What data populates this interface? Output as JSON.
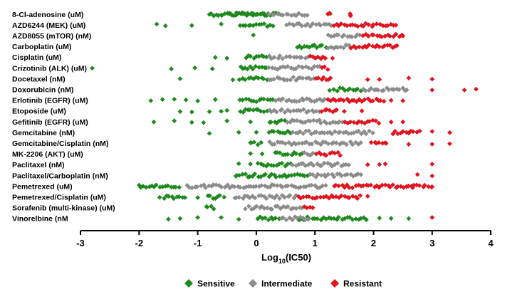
{
  "chart_data": {
    "type": "scatter",
    "title": "",
    "xlabel": "Log10(IC50)",
    "xlabel_base": "Log",
    "xlabel_sub": "10",
    "xlabel_rest": "(IC50)",
    "ylabel": "",
    "xlim": [
      -3,
      4
    ],
    "xticks": [
      -3,
      -2,
      -1,
      0,
      1,
      2,
      3,
      4
    ],
    "colors": {
      "sensitive": "#1e8a1e",
      "intermediate": "#8c8c8c",
      "resistant": "#e0141e"
    },
    "legend": [
      {
        "key": "sensitive",
        "label": "Sensitive"
      },
      {
        "key": "intermediate",
        "label": "Intermediate"
      },
      {
        "key": "resistant",
        "label": "Resistant"
      }
    ],
    "drugs": [
      {
        "label": "8-Cl-adenosine  (uM)",
        "sensitive": [
          [
            -0.8,
            0.4
          ],
          [
            -0.5,
            0.2
          ]
        ],
        "intermediate": [
          [
            0.2,
            0.9
          ]
        ],
        "resistant": [
          [
            1.2,
            1.3
          ],
          [
            1.6,
            1.6
          ]
        ],
        "outliers_s": [
          -0.8,
          -0.6,
          -0.45
        ],
        "outliers_r": [
          1.25,
          1.6
        ]
      },
      {
        "label": "AZD6244 (MEK) (uM)",
        "sensitive": [
          [
            -0.3,
            0.3
          ]
        ],
        "intermediate": [
          [
            0.5,
            1.3
          ]
        ],
        "resistant": [
          [
            1.3,
            2.4
          ]
        ],
        "outliers_s": [
          -1.7,
          -1.55,
          -1.1,
          -0.6
        ],
        "outliers_r": []
      },
      {
        "label": "AZD8055 (mTOR) (nM)",
        "sensitive": [],
        "intermediate": [
          [
            1.2,
            1.8
          ]
        ],
        "resistant": [
          [
            1.8,
            2.5
          ]
        ],
        "outliers_s": [
          -0.05
        ],
        "outliers_r": [
          2.5
        ]
      },
      {
        "label": "Carboplatin  (uM)",
        "sensitive": [
          [
            0.7,
            1.2
          ]
        ],
        "intermediate": [
          [
            1.2,
            1.6
          ]
        ],
        "resistant": [
          [
            1.6,
            2.4
          ]
        ],
        "outliers_s": [
          0.7
        ],
        "outliers_r": [
          2.4
        ]
      },
      {
        "label": "Cisplatin  (uM)",
        "sensitive": [
          [
            -0.2,
            0.2
          ]
        ],
        "intermediate": [
          [
            0.2,
            0.9
          ]
        ],
        "resistant": [
          [
            0.9,
            1.2
          ]
        ],
        "outliers_s": [
          -0.7,
          -0.5
        ],
        "outliers_r": [
          1.3
        ]
      },
      {
        "label": "Crizotinib (ALK)  (uM)",
        "sensitive": [
          [
            -0.3,
            0.2
          ]
        ],
        "intermediate": [
          [
            0.2,
            1.1
          ]
        ],
        "resistant": [
          [
            1.1,
            1.25
          ]
        ],
        "outliers_s": [
          -2.8,
          -1.45,
          -1.05,
          -0.75
        ],
        "outliers_r": []
      },
      {
        "label": "Docetaxel  (nM)",
        "sensitive": [
          [
            -0.3,
            0.2
          ]
        ],
        "intermediate": [
          [
            0.2,
            1.0
          ]
        ],
        "resistant": [
          [
            1.0,
            1.3
          ]
        ],
        "outliers_s": [
          -1.3,
          -0.4
        ],
        "outliers_r": [
          1.9,
          2.1,
          2.6,
          3.0
        ]
      },
      {
        "label": "Doxorubicin  (nM)",
        "sensitive": [
          [
            1.3,
            1.8
          ]
        ],
        "intermediate": [
          [
            1.8,
            2.6
          ]
        ],
        "resistant": [],
        "outliers_s": [
          1.25
        ],
        "outliers_r": [
          3.0,
          3.55,
          3.75
        ]
      },
      {
        "label": "Erlotinib  (EGFR) (uM)",
        "sensitive": [
          [
            -0.3,
            0.3
          ]
        ],
        "intermediate": [
          [
            0.3,
            1.2
          ]
        ],
        "resistant": [
          [
            1.2,
            2.2
          ]
        ],
        "outliers_s": [
          -1.8,
          -1.6,
          -1.4,
          -1.2,
          -1.0,
          -0.7
        ],
        "outliers_r": [
          2.3,
          2.5
        ]
      },
      {
        "label": "Etoposide  (uM)",
        "sensitive": [
          [
            -0.3,
            0.2
          ]
        ],
        "intermediate": [
          [
            0.2,
            1.1
          ]
        ],
        "resistant": [
          [
            1.1,
            1.4
          ]
        ],
        "outliers_s": [
          -1.3,
          -1.1,
          -0.8,
          -0.6,
          -0.5
        ],
        "outliers_r": [
          1.5,
          1.8
        ]
      },
      {
        "label": "Gefitinib  (EGFR) (uM)",
        "sensitive": [
          [
            0.2,
            0.5
          ]
        ],
        "intermediate": [
          [
            0.5,
            1.5
          ]
        ],
        "resistant": [
          [
            1.5,
            2.1
          ]
        ],
        "outliers_s": [
          -1.75,
          -1.4,
          -1.1,
          -0.9,
          -0.5,
          -0.1
        ],
        "outliers_r": [
          2.3,
          2.5
        ]
      },
      {
        "label": "Gemcitabine  (nM)",
        "sensitive": [
          [
            0.2,
            0.6
          ]
        ],
        "intermediate": [
          [
            0.6,
            2.0
          ]
        ],
        "resistant": [
          [
            2.3,
            2.8
          ]
        ],
        "outliers_s": [
          -0.8,
          -0.3,
          0.0
        ],
        "outliers_r": [
          3.0,
          3.3
        ]
      },
      {
        "label": "Gemcitabine/Cisplatin  (nM)",
        "sensitive": [
          [
            -0.1,
            0.1
          ]
        ],
        "intermediate": [
          [
            0.2,
            1.8
          ]
        ],
        "resistant": [
          [
            1.95,
            2.25
          ]
        ],
        "outliers_s": [
          -0.1
        ],
        "outliers_r": [
          2.6,
          3.0,
          3.3
        ]
      },
      {
        "label": "MK-2206 (AKT)  (uM)",
        "sensitive": [
          [
            0.3,
            0.8
          ]
        ],
        "intermediate": [
          [
            0.8,
            1.0
          ]
        ],
        "resistant": [
          [
            1.0,
            1.45
          ]
        ],
        "outliers_s": [
          -0.1,
          0.1
        ],
        "outliers_r": []
      },
      {
        "label": "Paclitaxel  (nM)",
        "sensitive": [
          [
            0.0,
            0.6
          ]
        ],
        "intermediate": [
          [
            0.6,
            1.6
          ]
        ],
        "resistant": [],
        "outliers_s": [
          -0.3,
          -0.1
        ],
        "outliers_r": [
          1.9,
          2.1,
          2.2,
          3.0
        ]
      },
      {
        "label": "Paclitaxel/Carboplatin  (nM)",
        "sensitive": [
          [
            -0.35,
            0.9
          ]
        ],
        "intermediate": [
          [
            0.9,
            1.8
          ]
        ],
        "resistant": [],
        "outliers_s": [
          -0.35
        ],
        "outliers_r": [
          2.75,
          3.0
        ]
      },
      {
        "label": "Pemetrexed  (uM)",
        "sensitive": [
          [
            -2.0,
            -1.3
          ]
        ],
        "intermediate": [
          [
            -1.2,
            1.2
          ]
        ],
        "resistant": [
          [
            1.3,
            3.0
          ]
        ],
        "outliers_s": [
          -2.0
        ],
        "outliers_r": [
          2.1,
          2.4,
          2.65,
          3.0
        ]
      },
      {
        "label": "Pemetrexed/Cisplatin  (uM)",
        "sensitive": [
          [
            -1.6,
            -1.2
          ],
          [
            -0.85,
            -0.6
          ]
        ],
        "intermediate": [
          [
            -0.4,
            0.7
          ]
        ],
        "resistant": [
          [
            0.7,
            1.8
          ]
        ],
        "outliers_s": [
          -1.65,
          -1.0,
          -0.55
        ],
        "outliers_r": [
          1.9
        ]
      },
      {
        "label": "Sorafenib  (multi-kinase)  (uM)",
        "sensitive": [
          [
            -0.85,
            -0.7
          ]
        ],
        "intermediate": [
          [
            -0.2,
            0.8
          ]
        ],
        "resistant": [
          [
            0.8,
            1.0
          ]
        ],
        "outliers_s": [
          -0.85
        ],
        "outliers_r": []
      },
      {
        "label": "Vinorelbine  (nM",
        "sensitive": [
          [
            0.0,
            0.4
          ],
          [
            0.7,
            1.9
          ]
        ],
        "intermediate": [
          [
            0.4,
            0.9
          ]
        ],
        "resistant": [],
        "outliers_s": [
          -1.5,
          -1.3,
          -1.0,
          -0.6,
          -0.3,
          2.1,
          2.3,
          2.6
        ],
        "outliers_r": [
          3.0
        ]
      }
    ]
  }
}
